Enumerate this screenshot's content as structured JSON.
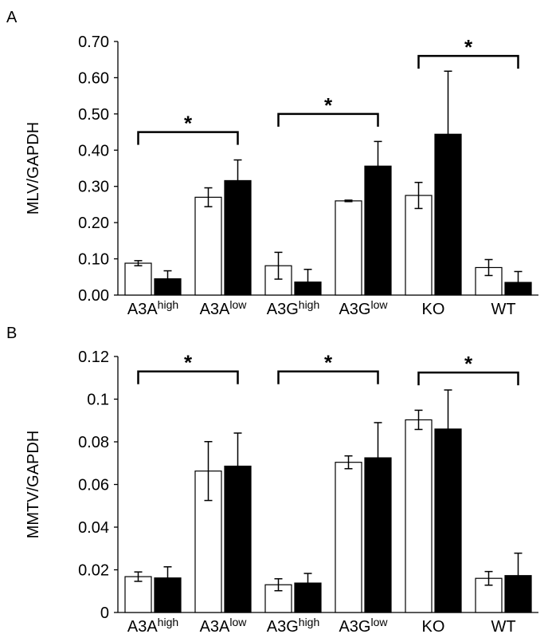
{
  "chart_data": [
    {
      "panel_letter": "A",
      "type": "bar",
      "title": "",
      "xlabel": "",
      "ylabel": "MLV/GAPDH",
      "ylim": [
        0,
        0.7
      ],
      "yticks": [
        "0.00",
        "0.10",
        "0.20",
        "0.30",
        "0.40",
        "0.50",
        "0.60",
        "0.70"
      ],
      "grid": false,
      "categories": [
        {
          "base": "A3A",
          "sup": "high"
        },
        {
          "base": "A3A",
          "sup": "low"
        },
        {
          "base": "A3G",
          "sup": "high"
        },
        {
          "base": "A3G",
          "sup": "low"
        },
        {
          "base": "KO",
          "sup": ""
        },
        {
          "base": "WT",
          "sup": ""
        }
      ],
      "series": [
        {
          "color": "#ffffff",
          "values": [
            0.088,
            0.27,
            0.081,
            0.26,
            0.275,
            0.076
          ],
          "errors": [
            0.007,
            0.026,
            0.037,
            0.002,
            0.036,
            0.022
          ]
        },
        {
          "color": "#000000",
          "values": [
            0.045,
            0.316,
            0.036,
            0.356,
            0.444,
            0.035
          ],
          "errors": [
            0.022,
            0.057,
            0.035,
            0.068,
            0.174,
            0.03
          ]
        }
      ],
      "annotations": [
        {
          "text": "*",
          "from": 0,
          "to": 1,
          "level": 0.45
        },
        {
          "text": "*",
          "from": 2,
          "to": 3,
          "level": 0.5
        },
        {
          "text": "*",
          "from": 4,
          "to": 5,
          "level": 0.66
        }
      ]
    },
    {
      "panel_letter": "B",
      "type": "bar",
      "title": "",
      "xlabel": "",
      "ylabel": "MMTV/GAPDH",
      "ylim": [
        0,
        0.12
      ],
      "yticks": [
        "0",
        "0.02",
        "0.04",
        "0.06",
        "0.08",
        "0.1",
        "0.12"
      ],
      "grid": false,
      "categories": [
        {
          "base": "A3A",
          "sup": "high"
        },
        {
          "base": "A3A",
          "sup": "low"
        },
        {
          "base": "A3G",
          "sup": "high"
        },
        {
          "base": "A3G",
          "sup": "low"
        },
        {
          "base": "KO",
          "sup": ""
        },
        {
          "base": "WT",
          "sup": ""
        }
      ],
      "series": [
        {
          "color": "#ffffff",
          "values": [
            0.0168,
            0.0663,
            0.013,
            0.0704,
            0.0903,
            0.016
          ],
          "errors": [
            0.0022,
            0.0138,
            0.0028,
            0.003,
            0.0045,
            0.0032
          ]
        },
        {
          "color": "#000000",
          "values": [
            0.0162,
            0.0686,
            0.0138,
            0.0725,
            0.086,
            0.0173
          ],
          "errors": [
            0.0052,
            0.0155,
            0.0045,
            0.0165,
            0.0183,
            0.0105
          ]
        }
      ],
      "annotations": [
        {
          "text": "*",
          "from": 0,
          "to": 1,
          "level": 0.113
        },
        {
          "text": "*",
          "from": 2,
          "to": 3,
          "level": 0.113
        },
        {
          "text": "*",
          "from": 4,
          "to": 5,
          "level": 0.1125
        }
      ]
    }
  ]
}
